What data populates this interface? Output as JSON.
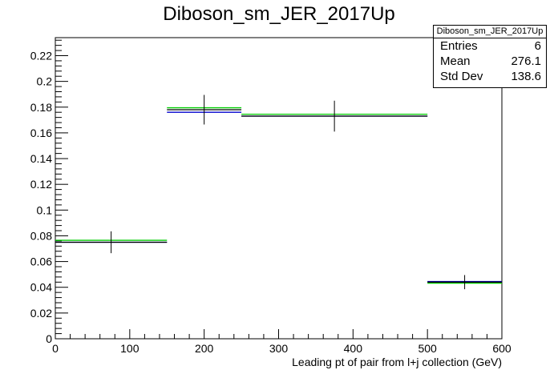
{
  "chart_data": {
    "type": "histogram",
    "title": "Diboson_sm_JER_2017Up",
    "xlabel": "Leading pt of pair from l+j collection (GeV)",
    "ylabel": "",
    "xlim": [
      0,
      600
    ],
    "ylim": [
      0,
      0.234
    ],
    "x_ticks": [
      0,
      100,
      200,
      300,
      400,
      500,
      600
    ],
    "y_ticks": [
      0,
      0.02,
      0.04,
      0.06,
      0.08,
      0.1,
      0.12,
      0.14,
      0.16,
      0.18,
      0.2,
      0.22
    ],
    "grid": false,
    "bins": [
      {
        "low": 0,
        "high": 150,
        "center": 75,
        "values": {
          "black": 0.075,
          "blue": 0.075,
          "green": 0.0765
        },
        "error": 0.0085
      },
      {
        "low": 150,
        "high": 250,
        "center": 200,
        "values": {
          "black": 0.178,
          "blue": 0.176,
          "green": 0.1795
        },
        "error": 0.0115
      },
      {
        "low": 250,
        "high": 500,
        "center": 375,
        "values": {
          "black": 0.173,
          "blue": 0.173,
          "green": 0.1745
        },
        "error": 0.012
      },
      {
        "low": 500,
        "high": 600,
        "center": 550,
        "values": {
          "black": 0.044,
          "blue": 0.0445,
          "green": 0.0432
        },
        "error": 0.0055
      }
    ],
    "series_colors": {
      "black": "#000000",
      "blue": "#0000cc",
      "green": "#00cc00"
    },
    "stats": {
      "name": "Diboson_sm_JER_2017Up",
      "entries_label": "Entries",
      "entries": "6",
      "mean_label": "Mean",
      "mean": "276.1",
      "stddev_label": "Std Dev",
      "stddev": "138.6"
    }
  }
}
